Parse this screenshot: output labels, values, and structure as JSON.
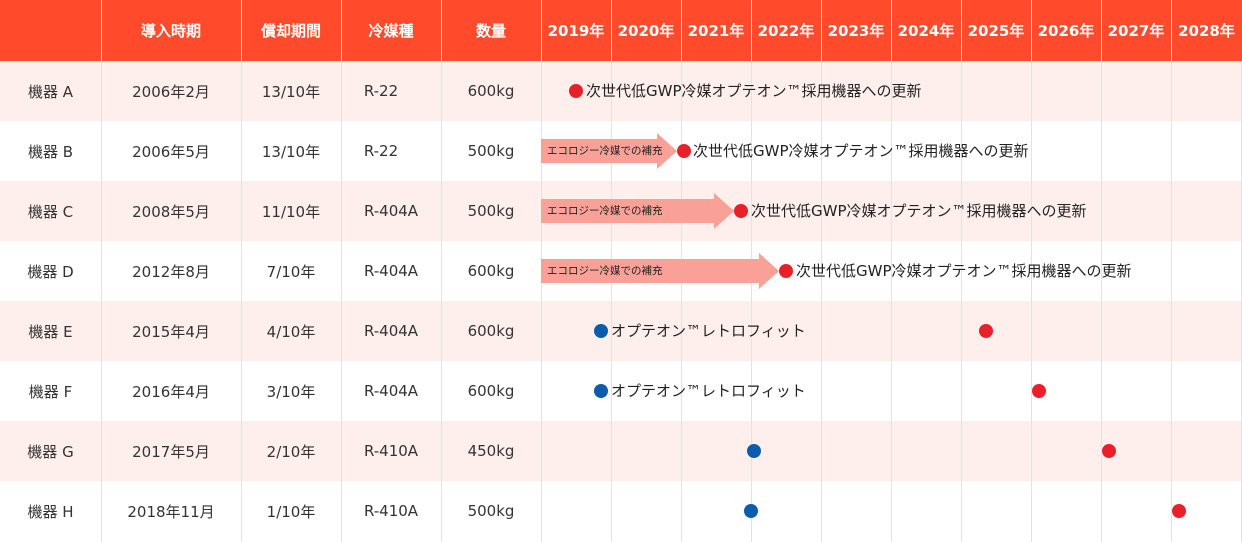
{
  "headers": {
    "device": "",
    "intro": "導入時期",
    "depreciation": "償却期間",
    "refrigerant": "冷媒種",
    "quantity": "数量",
    "years": [
      "2019年",
      "2020年",
      "2021年",
      "2022年",
      "2023年",
      "2024年",
      "2025年",
      "2026年",
      "2027年",
      "2028年"
    ]
  },
  "rows": [
    {
      "device": "機器 A",
      "intro": "2006年2月",
      "depreciation": "13/10年",
      "refrigerant": "R-22",
      "quantity": "600kg"
    },
    {
      "device": "機器 B",
      "intro": "2006年5月",
      "depreciation": "13/10年",
      "refrigerant": "R-22",
      "quantity": "500kg"
    },
    {
      "device": "機器 C",
      "intro": "2008年5月",
      "depreciation": "11/10年",
      "refrigerant": "R-404A",
      "quantity": "500kg"
    },
    {
      "device": "機器 D",
      "intro": "2012年8月",
      "depreciation": "7/10年",
      "refrigerant": "R-404A",
      "quantity": "600kg"
    },
    {
      "device": "機器 E",
      "intro": "2015年4月",
      "depreciation": "4/10年",
      "refrigerant": "R-404A",
      "quantity": "600kg"
    },
    {
      "device": "機器 F",
      "intro": "2016年4月",
      "depreciation": "3/10年",
      "refrigerant": "R-404A",
      "quantity": "600kg"
    },
    {
      "device": "機器 G",
      "intro": "2017年5月",
      "depreciation": "2/10年",
      "refrigerant": "R-410A",
      "quantity": "450kg"
    },
    {
      "device": "機器 H",
      "intro": "2018年11月",
      "depreciation": "1/10年",
      "refrigerant": "R-410A",
      "quantity": "500kg"
    }
  ],
  "labels": {
    "replace": "次世代低GWP冷媒オプテオン™採用機器への更新",
    "retrofit": "オプテオン™レトロフィット",
    "eco_refill": "エコロジー冷媒での補充"
  },
  "colors": {
    "header": "#ff4b2b",
    "row_tint": "#ffefec",
    "replace_dot": "#e8202a",
    "retrofit_dot": "#0c5cad",
    "arrow": "#f9a197"
  }
}
